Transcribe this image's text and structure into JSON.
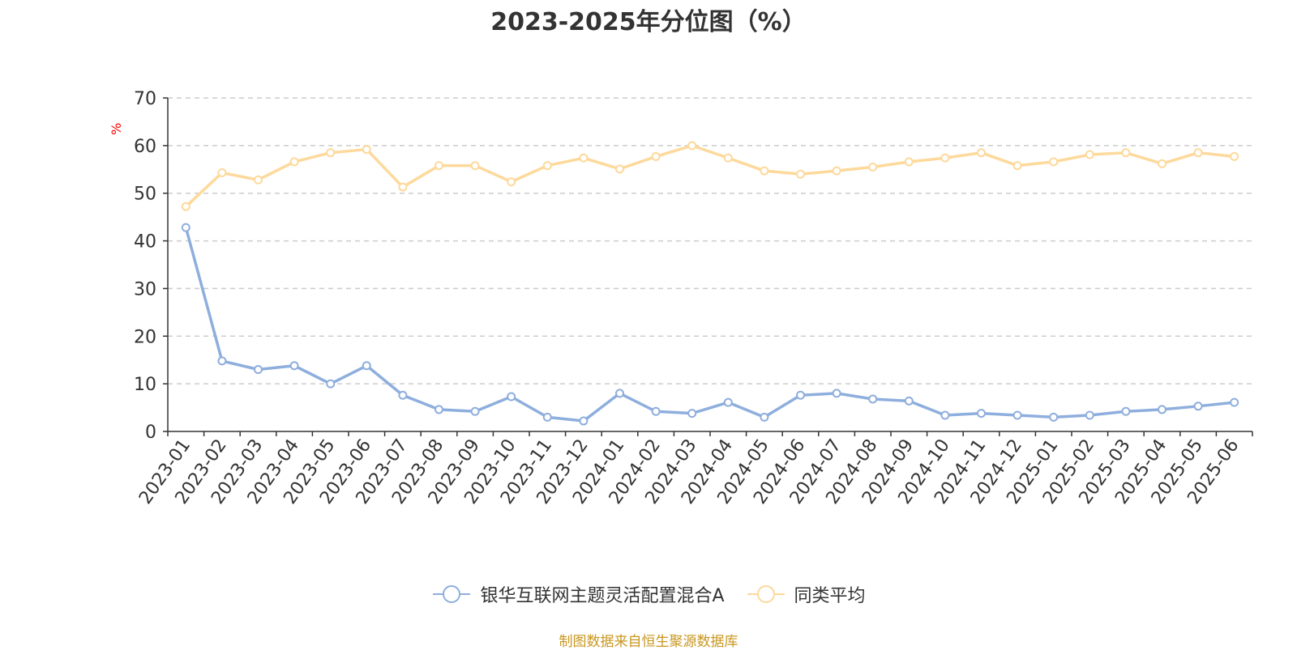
{
  "title": "2023-2025年分位图（%）",
  "source_text": "制图数据来自恒生聚源数据库",
  "chart_data": {
    "type": "line",
    "title": "2023-2025年分位图（%）",
    "ylabel": "%",
    "ylim": [
      0,
      70
    ],
    "yticks": [
      0,
      10,
      20,
      30,
      40,
      50,
      60,
      70
    ],
    "grid": true,
    "legend_position": "bottom",
    "categories": [
      "2023-01",
      "2023-02",
      "2023-03",
      "2023-04",
      "2023-05",
      "2023-06",
      "2023-07",
      "2023-08",
      "2023-09",
      "2023-10",
      "2023-11",
      "2023-12",
      "2024-01",
      "2024-02",
      "2024-03",
      "2024-04",
      "2024-05",
      "2024-06",
      "2024-07",
      "2024-08",
      "2024-09",
      "2024-10",
      "2024-11",
      "2024-12",
      "2025-01",
      "2025-02",
      "2025-03",
      "2025-04",
      "2025-05",
      "2025-06"
    ],
    "series": [
      {
        "name": "银华互联网主题灵活配置混合A",
        "color": "#8eaedd",
        "values": [
          42.8,
          14.8,
          13.0,
          13.8,
          10.0,
          13.8,
          7.6,
          4.6,
          4.2,
          7.3,
          3.0,
          2.2,
          8.0,
          4.2,
          3.8,
          6.1,
          3.0,
          7.6,
          8.0,
          6.8,
          6.4,
          3.4,
          3.8,
          3.4,
          3.0,
          3.4,
          4.2,
          4.6,
          5.3,
          6.1
        ]
      },
      {
        "name": "同类平均",
        "color": "#fdd99b",
        "values": [
          47.2,
          54.3,
          52.8,
          56.6,
          58.5,
          59.2,
          51.3,
          55.8,
          55.8,
          52.4,
          55.8,
          57.4,
          55.1,
          57.7,
          60.0,
          57.4,
          54.7,
          54.0,
          54.7,
          55.5,
          56.6,
          57.4,
          58.5,
          55.8,
          56.6,
          58.1,
          58.5,
          56.2,
          58.5,
          57.7
        ]
      }
    ]
  }
}
